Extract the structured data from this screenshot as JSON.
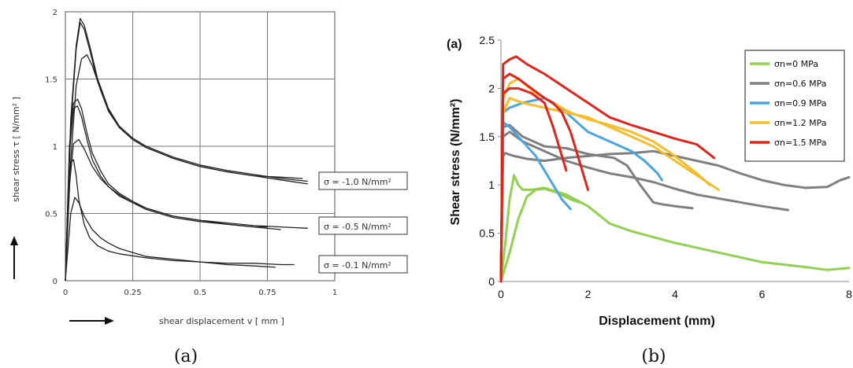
{
  "captions": {
    "a": "(a)",
    "b": "(b)"
  },
  "chart_data": [
    {
      "type": "line",
      "panel": "(a)",
      "xlabel": "shear displacement v [ mm ]",
      "ylabel": "shear stress τ [ N/mm² ]",
      "xlim": [
        0,
        1
      ],
      "ylim": [
        0,
        2
      ],
      "xticks": [
        "0",
        "0.25",
        "0.5",
        "0.75",
        "1"
      ],
      "yticks": [
        "0",
        "0.5",
        "1",
        "1.5",
        "2"
      ],
      "grid": true,
      "annotations": [
        "σ = -1.0 N/mm²",
        "σ = -0.5 N/mm²",
        "σ = -0.1 N/mm²"
      ],
      "series": [
        {
          "group": "σ = -1.0 N/mm²",
          "color": "#222222",
          "x": [
            0,
            0.02,
            0.04,
            0.055,
            0.07,
            0.09,
            0.12,
            0.16,
            0.2,
            0.25,
            0.3,
            0.4,
            0.5,
            0.6,
            0.7,
            0.8,
            0.9
          ],
          "y": [
            0,
            1.2,
            1.75,
            1.95,
            1.9,
            1.75,
            1.5,
            1.28,
            1.15,
            1.06,
            1.0,
            0.92,
            0.86,
            0.82,
            0.79,
            0.76,
            0.74
          ]
        },
        {
          "group": "σ = -1.0 N/mm²",
          "color": "#222222",
          "x": [
            0,
            0.02,
            0.04,
            0.055,
            0.07,
            0.09,
            0.12,
            0.16,
            0.2,
            0.25,
            0.3,
            0.4,
            0.5,
            0.6,
            0.7,
            0.8,
            0.88
          ],
          "y": [
            0,
            1.15,
            1.72,
            1.92,
            1.87,
            1.72,
            1.48,
            1.27,
            1.14,
            1.05,
            0.99,
            0.91,
            0.85,
            0.81,
            0.78,
            0.77,
            0.76
          ]
        },
        {
          "group": "σ = -1.0 N/mm²",
          "color": "#222222",
          "x": [
            0,
            0.02,
            0.04,
            0.06,
            0.08,
            0.1,
            0.13,
            0.16,
            0.2,
            0.25,
            0.3,
            0.4,
            0.5,
            0.6,
            0.7,
            0.8,
            0.9
          ],
          "y": [
            0,
            0.9,
            1.45,
            1.65,
            1.68,
            1.6,
            1.42,
            1.26,
            1.14,
            1.05,
            0.99,
            0.91,
            0.85,
            0.81,
            0.78,
            0.75,
            0.72
          ]
        },
        {
          "group": "σ = -0.5 N/mm²",
          "color": "#222222",
          "x": [
            0,
            0.015,
            0.03,
            0.045,
            0.06,
            0.08,
            0.1,
            0.13,
            0.16,
            0.2,
            0.25,
            0.3,
            0.4,
            0.5,
            0.6,
            0.7,
            0.8,
            0.9
          ],
          "y": [
            0,
            1.0,
            1.32,
            1.35,
            1.28,
            1.1,
            0.95,
            0.82,
            0.72,
            0.65,
            0.59,
            0.54,
            0.48,
            0.45,
            0.43,
            0.41,
            0.4,
            0.39
          ]
        },
        {
          "group": "σ = -0.5 N/mm²",
          "color": "#222222",
          "x": [
            0,
            0.015,
            0.03,
            0.045,
            0.06,
            0.08,
            0.1,
            0.13,
            0.16,
            0.2,
            0.25,
            0.3,
            0.4,
            0.5,
            0.6,
            0.7,
            0.8
          ],
          "y": [
            0,
            0.95,
            1.28,
            1.3,
            1.22,
            1.05,
            0.9,
            0.78,
            0.7,
            0.63,
            0.58,
            0.53,
            0.47,
            0.44,
            0.42,
            0.4,
            0.38
          ]
        },
        {
          "group": "σ = -0.5 N/mm²",
          "color": "#222222",
          "x": [
            0,
            0.015,
            0.03,
            0.05,
            0.07,
            0.1,
            0.13,
            0.16,
            0.2,
            0.25,
            0.3,
            0.4,
            0.5,
            0.6,
            0.7,
            0.75
          ],
          "y": [
            0,
            0.7,
            1.02,
            1.05,
            0.98,
            0.85,
            0.76,
            0.7,
            0.64,
            0.58,
            0.54,
            0.48,
            0.45,
            0.42,
            0.4,
            0.4
          ]
        },
        {
          "group": "σ = -0.1 N/mm²",
          "color": "#222222",
          "x": [
            0,
            0.01,
            0.02,
            0.03,
            0.04,
            0.05,
            0.07,
            0.09,
            0.12,
            0.16,
            0.2,
            0.3,
            0.4,
            0.5,
            0.6,
            0.7,
            0.8,
            0.85
          ],
          "y": [
            0,
            0.6,
            0.88,
            0.9,
            0.78,
            0.6,
            0.42,
            0.32,
            0.26,
            0.22,
            0.2,
            0.17,
            0.15,
            0.14,
            0.13,
            0.13,
            0.12,
            0.12
          ]
        },
        {
          "group": "σ = -0.1 N/mm²",
          "color": "#222222",
          "x": [
            0,
            0.02,
            0.035,
            0.05,
            0.07,
            0.1,
            0.13,
            0.16,
            0.2,
            0.25,
            0.3,
            0.4,
            0.5,
            0.6,
            0.7,
            0.78
          ],
          "y": [
            0,
            0.5,
            0.62,
            0.58,
            0.48,
            0.38,
            0.32,
            0.28,
            0.24,
            0.21,
            0.18,
            0.16,
            0.14,
            0.12,
            0.11,
            0.1
          ]
        }
      ]
    },
    {
      "type": "line",
      "panel": "(b)",
      "panel_label": "(a)",
      "xlabel": "Displacement (mm)",
      "ylabel": "Shear stress (N/mm²)",
      "xlim": [
        0,
        8
      ],
      "ylim": [
        0,
        2.5
      ],
      "xticks": [
        "0",
        "2",
        "4",
        "6",
        "8"
      ],
      "yticks": [
        "0",
        "0.5",
        "1",
        "1.5",
        "2",
        "2.5"
      ],
      "grid": false,
      "legend": "top-right",
      "legend_entries": [
        {
          "name": "σn=0 MPa",
          "color": "#92d050"
        },
        {
          "name": "σn=0.6 MPa",
          "color": "#7f7f7f"
        },
        {
          "name": "σn=0.9 MPa",
          "color": "#4ba6e0"
        },
        {
          "name": "σn=1.2 MPa",
          "color": "#f6bc2c"
        },
        {
          "name": "σn=1.5 MPa",
          "color": "#e2231a"
        }
      ],
      "series": [
        {
          "name": "σn=0 MPa",
          "color": "#92d050",
          "x": [
            0,
            0.1,
            0.2,
            0.3,
            0.4,
            0.5,
            0.7,
            1.0,
            1.5,
            2.0,
            2.5,
            3.0,
            4.0,
            5.0,
            6.0,
            7.0,
            7.5,
            8.0
          ],
          "y": [
            0,
            0.4,
            0.85,
            1.1,
            1.0,
            0.95,
            0.95,
            0.97,
            0.9,
            0.78,
            0.6,
            0.52,
            0.4,
            0.3,
            0.2,
            0.15,
            0.12,
            0.14
          ]
        },
        {
          "name": "σn=0 MPa",
          "color": "#92d050",
          "x": [
            0,
            0.2,
            0.4,
            0.6,
            0.8,
            1.0,
            1.3,
            1.6,
            1.8
          ],
          "y": [
            0,
            0.3,
            0.65,
            0.88,
            0.95,
            0.96,
            0.92,
            0.85,
            0.82
          ]
        },
        {
          "name": "σn=0.6 MPa",
          "color": "#7f7f7f",
          "x": [
            0,
            0.05,
            0.1,
            0.3,
            0.6,
            1.0,
            1.5,
            2.0,
            2.5,
            3.0,
            3.5,
            4.0,
            4.5,
            5.0,
            5.5,
            6.0,
            6.5,
            7.0,
            7.5,
            7.8,
            8.0
          ],
          "y": [
            0,
            1.3,
            1.33,
            1.3,
            1.27,
            1.25,
            1.28,
            1.3,
            1.32,
            1.33,
            1.35,
            1.3,
            1.25,
            1.2,
            1.12,
            1.05,
            1.0,
            0.97,
            0.98,
            1.05,
            1.08
          ]
        },
        {
          "name": "σn=0.6 MPa",
          "color": "#7f7f7f",
          "x": [
            0,
            0.05,
            0.2,
            0.5,
            1.0,
            1.5,
            2.0,
            2.5,
            3.0,
            3.5,
            4.0,
            4.5,
            5.0,
            5.5,
            6.0,
            6.6
          ],
          "y": [
            0,
            1.5,
            1.55,
            1.45,
            1.35,
            1.25,
            1.18,
            1.12,
            1.08,
            1.03,
            0.96,
            0.9,
            0.86,
            0.82,
            0.78,
            0.74
          ]
        },
        {
          "name": "σn=0.6 MPa",
          "color": "#7f7f7f",
          "x": [
            0,
            0.05,
            0.2,
            0.5,
            1.0,
            1.5,
            2.0,
            2.3,
            2.6,
            2.9,
            3.2,
            3.5,
            3.7,
            4.0,
            4.4
          ],
          "y": [
            0,
            1.6,
            1.62,
            1.5,
            1.4,
            1.38,
            1.32,
            1.3,
            1.28,
            1.2,
            1.0,
            0.82,
            0.8,
            0.78,
            0.76
          ]
        },
        {
          "name": "σn=0.9 MPa",
          "color": "#4ba6e0",
          "x": [
            0,
            0.05,
            0.2,
            0.5,
            0.8,
            1.0,
            1.2,
            1.4,
            1.6
          ],
          "y": [
            0,
            1.65,
            1.6,
            1.45,
            1.3,
            1.15,
            1.0,
            0.85,
            0.75
          ]
        },
        {
          "name": "σn=0.9 MPa",
          "color": "#4ba6e0",
          "x": [
            0,
            0.05,
            0.2,
            0.5,
            1.0,
            1.5,
            2.0,
            2.5,
            3.0,
            3.3,
            3.6,
            3.7
          ],
          "y": [
            0,
            1.75,
            1.8,
            1.85,
            1.9,
            1.75,
            1.55,
            1.45,
            1.35,
            1.25,
            1.12,
            1.05
          ]
        },
        {
          "name": "σn=1.2 MPa",
          "color": "#f6bc2c",
          "x": [
            0,
            0.05,
            0.2,
            0.5,
            1.0,
            1.5,
            2.0,
            2.5,
            3.0,
            3.5,
            4.0,
            4.5,
            5.0
          ],
          "y": [
            0,
            1.75,
            1.9,
            1.85,
            1.8,
            1.75,
            1.7,
            1.6,
            1.5,
            1.4,
            1.25,
            1.1,
            0.95
          ]
        },
        {
          "name": "σn=1.2 MPa",
          "color": "#f6bc2c",
          "x": [
            0,
            0.05,
            0.2,
            0.4,
            0.8,
            1.2,
            1.6,
            2.0,
            2.5,
            3.0,
            3.5,
            4.0,
            4.5,
            4.8
          ],
          "y": [
            0,
            1.9,
            2.05,
            2.1,
            1.95,
            1.85,
            1.75,
            1.68,
            1.62,
            1.55,
            1.45,
            1.3,
            1.12,
            1.0
          ]
        },
        {
          "name": "σn=1.5 MPa",
          "color": "#e2231a",
          "x": [
            0,
            0.05,
            0.2,
            0.35,
            0.6,
            1.0,
            1.5,
            2.0,
            2.5,
            3.0,
            3.5,
            4.0,
            4.5,
            4.9
          ],
          "y": [
            0,
            2.25,
            2.3,
            2.33,
            2.25,
            2.15,
            2.0,
            1.85,
            1.7,
            1.62,
            1.55,
            1.48,
            1.42,
            1.28
          ]
        },
        {
          "name": "σn=1.5 MPa",
          "color": "#e2231a",
          "x": [
            0,
            0.05,
            0.2,
            0.4,
            0.7,
            1.0,
            1.2,
            1.4,
            1.6,
            1.8,
            2.0
          ],
          "y": [
            0,
            2.1,
            2.15,
            2.1,
            2.0,
            1.9,
            1.85,
            1.75,
            1.55,
            1.25,
            0.95
          ]
        },
        {
          "name": "σn=1.5 MPa",
          "color": "#e2231a",
          "x": [
            0,
            0.05,
            0.2,
            0.4,
            0.7,
            1.0,
            1.2,
            1.4,
            1.5
          ],
          "y": [
            0,
            1.95,
            2.0,
            2.0,
            1.95,
            1.85,
            1.6,
            1.3,
            1.15
          ]
        }
      ]
    }
  ]
}
